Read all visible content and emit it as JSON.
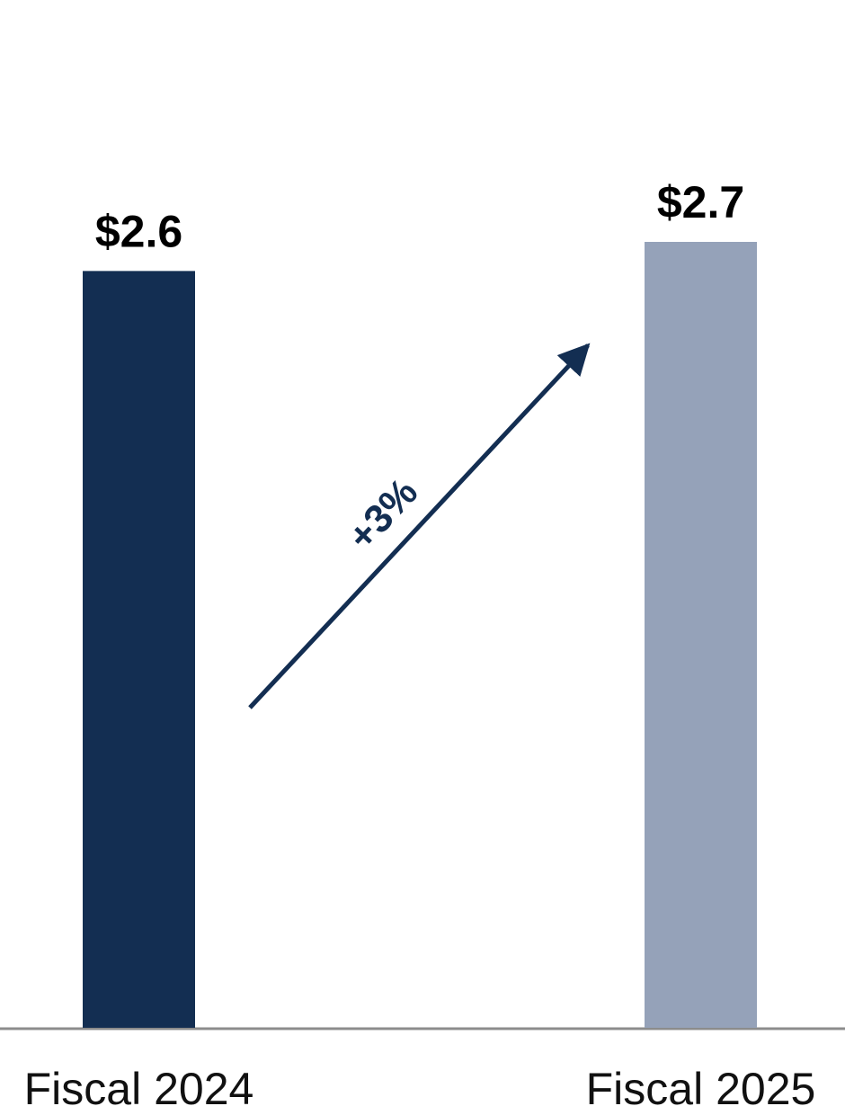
{
  "chart_data": {
    "type": "bar",
    "categories": [
      "Fiscal 2024",
      "Fiscal 2025"
    ],
    "values": [
      2.6,
      2.7
    ],
    "value_labels": [
      "$2.6",
      "$2.7"
    ],
    "colors": [
      "#132e52",
      "#95a2b9"
    ],
    "annotation": "+3%"
  }
}
